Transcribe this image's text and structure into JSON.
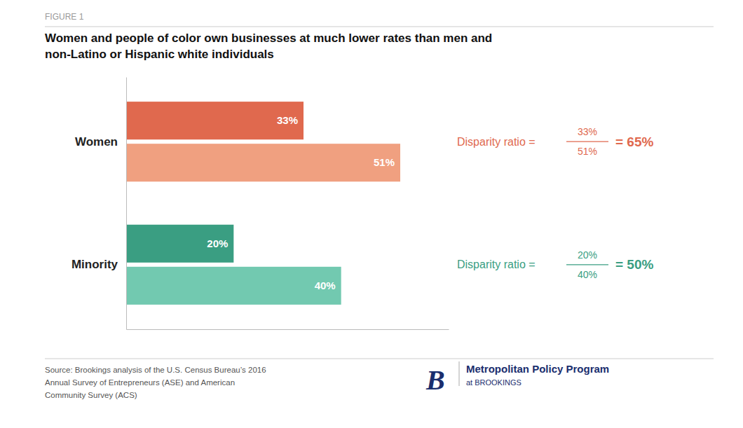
{
  "chart_data": {
    "type": "bar",
    "orientation": "horizontal",
    "title": "Women and people of color own businesses at much lower rates than men and\nnon-Latino or Hispanic white individuals",
    "categories": [
      "Women",
      "Minority"
    ],
    "series": [
      {
        "values": [
          33,
          20
        ],
        "value_labels": [
          "33%",
          "20%"
        ],
        "colors": [
          "#e0694e",
          "#3a9e82"
        ]
      },
      {
        "values": [
          51,
          40
        ],
        "value_labels": [
          "51%",
          "40%"
        ],
        "colors": [
          "#f0a080",
          "#72c9b0"
        ]
      }
    ],
    "xlim": [
      0,
      60
    ],
    "tick_labels": "y",
    "grid": false,
    "data_labels": true,
    "annotations": [
      {
        "text": "FIGURE 1",
        "color": "#999999"
      },
      {
        "text": "Disparity ratio = ",
        "numerator": "33%",
        "denominator": "51%",
        "result": "= 65%",
        "color": "#e0694e"
      },
      {
        "text": "Disparity ratio = ",
        "numerator": "20%",
        "denominator": "40%",
        "result": "= 50%",
        "color": "#3a9e82"
      },
      {
        "text": "Source: Brookings analysis of the U.S. Census Bureau’s 2016\nAnnual Survey of Entrepreneurs (ASE) and American\nCommunity Survey (ACS)",
        "color": "#555555"
      },
      {
        "text": "B",
        "color": "#1a2e6e"
      },
      {
        "text": "Metropolitan Policy Program",
        "color": "#1a2e6e"
      },
      {
        "text": "at BROOKINGS",
        "color": "#1a2e6e"
      }
    ]
  }
}
